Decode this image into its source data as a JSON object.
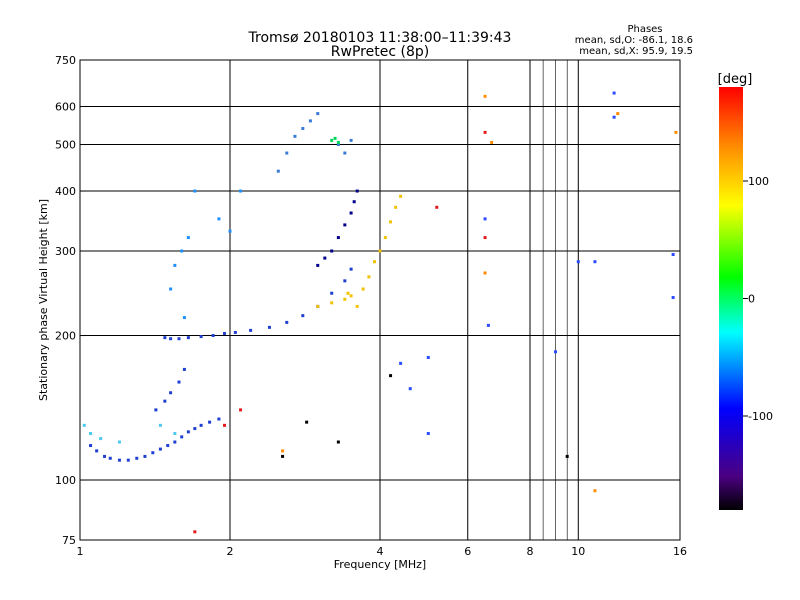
{
  "chart_data": {
    "type": "scatter",
    "title": "Tromsø 20180103 11:38:00–11:39:43",
    "subtitle": "RwPretec (8p)",
    "xlabel": "Frequency [MHz]",
    "ylabel": "Stationary phase Virtual Height [km]",
    "xscale": "log",
    "yscale": "log",
    "xlim": [
      1,
      16
    ],
    "ylim": [
      75,
      750
    ],
    "xticks": [
      1,
      2,
      4,
      6,
      8,
      10,
      16
    ],
    "yticks": [
      75,
      100,
      200,
      300,
      400,
      500,
      600,
      750
    ],
    "grid": true,
    "stats": {
      "title": "Phases",
      "line_o": "mean, sd,O: -86.1, 18.6",
      "line_x": "mean, sd,X:  95.9, 19.5"
    },
    "colorbar": {
      "label": "[deg]",
      "range": [
        -180,
        180
      ],
      "ticks": [
        -100,
        0,
        100
      ],
      "colors": [
        "#000000",
        "#4b0082",
        "#0000ff",
        "#00ffff",
        "#00ff00",
        "#ffff00",
        "#ff8c00",
        "#ff0000"
      ]
    },
    "series": [
      {
        "color": "#1f3fd0",
        "points": [
          [
            1.05,
            118
          ],
          [
            1.08,
            115
          ],
          [
            1.12,
            112
          ],
          [
            1.15,
            111
          ],
          [
            1.2,
            110
          ],
          [
            1.25,
            110
          ],
          [
            1.3,
            111
          ],
          [
            1.35,
            112
          ],
          [
            1.4,
            114
          ],
          [
            1.45,
            116
          ],
          [
            1.5,
            118
          ],
          [
            1.55,
            120
          ],
          [
            1.6,
            123
          ],
          [
            1.65,
            126
          ],
          [
            1.7,
            128
          ],
          [
            1.75,
            130
          ],
          [
            1.82,
            132
          ],
          [
            1.9,
            134
          ],
          [
            1.42,
            140
          ],
          [
            1.48,
            146
          ],
          [
            1.52,
            152
          ],
          [
            1.58,
            160
          ],
          [
            1.62,
            170
          ],
          [
            1.48,
            198
          ],
          [
            1.52,
            197
          ],
          [
            1.58,
            197
          ],
          [
            1.65,
            198
          ],
          [
            1.75,
            199
          ],
          [
            1.85,
            200
          ],
          [
            1.95,
            202
          ],
          [
            2.05,
            203
          ],
          [
            2.2,
            205
          ],
          [
            2.4,
            208
          ],
          [
            2.6,
            213
          ],
          [
            2.8,
            220
          ],
          [
            3.0,
            230
          ],
          [
            3.2,
            245
          ],
          [
            3.4,
            260
          ],
          [
            3.5,
            275
          ]
        ]
      },
      {
        "color": "#00008b",
        "points": [
          [
            3.2,
            300
          ],
          [
            3.3,
            320
          ],
          [
            3.4,
            340
          ],
          [
            3.5,
            360
          ],
          [
            3.55,
            380
          ],
          [
            3.6,
            400
          ],
          [
            3.0,
            280
          ],
          [
            3.1,
            290
          ]
        ]
      },
      {
        "color": "#1e90ff",
        "points": [
          [
            1.52,
            250
          ],
          [
            1.55,
            280
          ],
          [
            1.6,
            300
          ],
          [
            1.65,
            320
          ],
          [
            1.7,
            400
          ],
          [
            1.9,
            350
          ],
          [
            2.0,
            330
          ],
          [
            2.1,
            400
          ],
          [
            1.62,
            218
          ]
        ]
      },
      {
        "color": "#3a7bd5",
        "points": [
          [
            2.5,
            440
          ],
          [
            2.6,
            480
          ],
          [
            2.7,
            520
          ],
          [
            2.8,
            540
          ],
          [
            2.9,
            560
          ],
          [
            3.0,
            580
          ],
          [
            3.3,
            500
          ],
          [
            3.4,
            480
          ],
          [
            3.5,
            510
          ]
        ]
      },
      {
        "color": "#4cc9f0",
        "points": [
          [
            1.02,
            130
          ],
          [
            1.05,
            125
          ],
          [
            1.1,
            122
          ],
          [
            1.2,
            120
          ],
          [
            1.45,
            130
          ],
          [
            1.55,
            125
          ]
        ]
      },
      {
        "color": "#00d65a",
        "points": [
          [
            3.2,
            510
          ],
          [
            3.25,
            515
          ],
          [
            3.3,
            505
          ]
        ]
      },
      {
        "color": "#f2c200",
        "points": [
          [
            3.0,
            230
          ],
          [
            3.2,
            234
          ],
          [
            3.4,
            238
          ],
          [
            3.5,
            242
          ],
          [
            3.7,
            250
          ],
          [
            3.8,
            265
          ],
          [
            3.9,
            285
          ],
          [
            4.0,
            300
          ],
          [
            4.1,
            320
          ],
          [
            4.2,
            345
          ],
          [
            4.3,
            370
          ],
          [
            4.4,
            390
          ],
          [
            3.6,
            230
          ],
          [
            3.45,
            245
          ]
        ]
      },
      {
        "color": "#ff8c00",
        "points": [
          [
            6.5,
            270
          ],
          [
            6.5,
            630
          ],
          [
            6.7,
            505
          ],
          [
            10.8,
            95
          ],
          [
            12.0,
            580
          ],
          [
            15.7,
            530
          ],
          [
            2.55,
            115
          ]
        ]
      },
      {
        "color": "#e31a1c",
        "points": [
          [
            6.5,
            320
          ],
          [
            6.5,
            530
          ],
          [
            1.7,
            78
          ],
          [
            1.95,
            130
          ],
          [
            2.1,
            140
          ],
          [
            5.2,
            370
          ]
        ]
      },
      {
        "color": "#000000",
        "points": [
          [
            2.55,
            112
          ],
          [
            2.85,
            132
          ],
          [
            3.3,
            120
          ],
          [
            4.2,
            165
          ],
          [
            9.5,
            112
          ]
        ]
      },
      {
        "color": "#2b4bff",
        "points": [
          [
            5.0,
            180
          ],
          [
            5.0,
            125
          ],
          [
            6.5,
            350
          ],
          [
            6.6,
            210
          ],
          [
            9.0,
            185
          ],
          [
            10.0,
            285
          ],
          [
            10.8,
            285
          ],
          [
            11.8,
            640
          ],
          [
            11.8,
            570
          ],
          [
            15.5,
            295
          ],
          [
            15.5,
            240
          ],
          [
            4.4,
            175
          ],
          [
            4.6,
            155
          ]
        ]
      }
    ]
  }
}
